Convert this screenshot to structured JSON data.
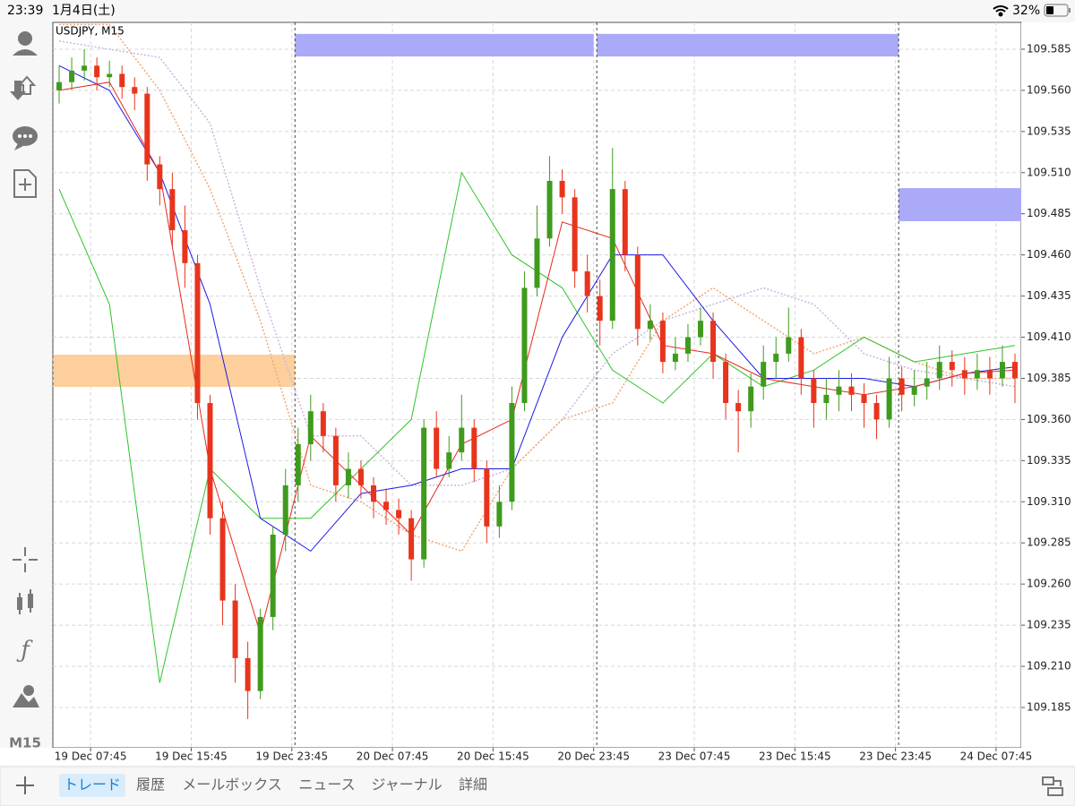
{
  "status_bar": {
    "time": "23:39",
    "date": "1月4日(土)",
    "battery": "32%"
  },
  "sidebar": {
    "timeframe": "M15"
  },
  "tabs": [
    "トレード",
    "履歴",
    "メールボックス",
    "ニュース",
    "ジャーナル",
    "詳細"
  ],
  "active_tab": 0,
  "chart_data": {
    "type": "candlestick",
    "label": "USDJPY, M15",
    "xlim": [
      0,
      308
    ],
    "ylim": [
      109.1605,
      109.6013
    ],
    "grid": true,
    "up_color": "#3f9b1d",
    "down_color": "#e8341c",
    "xticks": [
      {
        "value": 12,
        "label": "19 Dec 07:45"
      },
      {
        "value": 44,
        "label": "19 Dec 15:45"
      },
      {
        "value": 76,
        "label": "19 Dec 23:45"
      },
      {
        "value": 108,
        "label": "20 Dec 07:45"
      },
      {
        "value": 140,
        "label": "20 Dec 15:45"
      },
      {
        "value": 172,
        "label": "20 Dec 23:45"
      },
      {
        "value": 204,
        "label": "23 Dec 07:45"
      },
      {
        "value": 236,
        "label": "23 Dec 15:45"
      },
      {
        "value": 268,
        "label": "23 Dec 23:45"
      },
      {
        "value": 300,
        "label": "24 Dec 07:45"
      }
    ],
    "yticks": [
      109.585,
      {
        "value": 109.56,
        "label": "109.560"
      },
      109.535,
      {
        "value": 109.51,
        "label": "109.510"
      },
      109.485,
      {
        "value": 109.46,
        "label": "109.460"
      },
      109.435,
      {
        "value": 109.41,
        "label": "109.410"
      },
      109.385,
      {
        "value": 109.36,
        "label": "109.360"
      },
      109.335,
      {
        "value": 109.31,
        "label": "109.310"
      },
      109.285,
      {
        "value": 109.26,
        "label": "109.260"
      },
      109.235,
      {
        "value": 109.21,
        "label": "109.210"
      },
      109.185
    ],
    "x": [
      2,
      6,
      10,
      14,
      18,
      22,
      26,
      30,
      34,
      38,
      42,
      46,
      50,
      54,
      58,
      62,
      66,
      70,
      74,
      78,
      82,
      86,
      90,
      94,
      98,
      102,
      106,
      110,
      114,
      118,
      122,
      126,
      130,
      134,
      138,
      142,
      146,
      150,
      154,
      158,
      162,
      166,
      170,
      174,
      178,
      182,
      186,
      190,
      194,
      198,
      202,
      206,
      210,
      214,
      218,
      222,
      226,
      230,
      234,
      238,
      242,
      246,
      250,
      254,
      258,
      262,
      266,
      270,
      274,
      278,
      282,
      286,
      290,
      294,
      298,
      302,
      306
    ],
    "open": [
      109.56,
      109.565,
      109.572,
      109.575,
      109.568,
      109.57,
      109.562,
      109.558,
      109.515,
      109.5,
      109.475,
      109.455,
      109.37,
      109.3,
      109.25,
      109.215,
      109.195,
      109.24,
      109.29,
      109.32,
      109.345,
      109.365,
      109.35,
      109.32,
      109.33,
      109.32,
      109.31,
      109.305,
      109.3,
      109.275,
      109.355,
      109.33,
      109.34,
      109.355,
      109.33,
      109.295,
      109.31,
      109.37,
      109.44,
      109.47,
      109.505,
      109.495,
      109.45,
      109.435,
      109.42,
      109.5,
      109.46,
      109.415,
      109.42,
      109.395,
      109.4,
      109.41,
      109.42,
      109.395,
      109.37,
      109.365,
      109.38,
      109.395,
      109.4,
      109.41,
      109.385,
      109.37,
      109.375,
      109.38,
      109.375,
      109.37,
      109.36,
      109.385,
      109.375,
      109.38,
      109.385,
      109.395,
      109.39,
      109.385,
      109.39,
      109.385,
      109.395
    ],
    "high": [
      109.575,
      109.58,
      109.585,
      109.58,
      109.578,
      109.575,
      109.568,
      109.562,
      109.52,
      109.51,
      109.49,
      109.46,
      109.375,
      109.31,
      109.26,
      109.225,
      109.245,
      109.295,
      109.33,
      109.355,
      109.375,
      109.37,
      109.355,
      109.34,
      109.335,
      109.325,
      109.318,
      109.312,
      109.305,
      109.36,
      109.365,
      109.35,
      109.375,
      109.36,
      109.335,
      109.32,
      109.38,
      109.45,
      109.49,
      109.52,
      109.512,
      109.5,
      109.46,
      109.445,
      109.525,
      109.505,
      109.465,
      109.43,
      109.425,
      109.41,
      109.418,
      109.428,
      109.425,
      109.4,
      109.378,
      109.388,
      109.405,
      109.41,
      109.428,
      109.415,
      109.39,
      109.385,
      109.39,
      109.388,
      109.382,
      109.375,
      109.398,
      109.392,
      109.39,
      109.395,
      109.405,
      109.402,
      109.398,
      109.4,
      109.398,
      109.405,
      109.4
    ],
    "low": [
      109.552,
      109.56,
      109.566,
      109.56,
      109.562,
      109.555,
      109.548,
      109.505,
      109.49,
      109.465,
      109.44,
      109.36,
      109.29,
      109.235,
      109.2,
      109.178,
      109.19,
      109.232,
      109.28,
      109.31,
      109.335,
      109.34,
      109.31,
      109.312,
      109.312,
      109.3,
      109.296,
      109.29,
      109.262,
      109.27,
      109.325,
      109.325,
      109.335,
      109.322,
      109.285,
      109.288,
      109.305,
      109.365,
      109.435,
      109.465,
      109.485,
      109.44,
      109.425,
      109.405,
      109.415,
      109.45,
      109.405,
      109.408,
      109.388,
      109.39,
      109.395,
      109.405,
      109.385,
      109.36,
      109.34,
      109.355,
      109.372,
      109.385,
      109.395,
      109.375,
      109.355,
      109.36,
      109.365,
      109.365,
      109.355,
      109.348,
      109.355,
      109.365,
      109.368,
      109.372,
      109.378,
      109.38,
      109.375,
      109.378,
      109.375,
      109.38,
      109.37
    ],
    "close": [
      109.565,
      109.572,
      109.575,
      109.568,
      109.57,
      109.562,
      109.558,
      109.515,
      109.5,
      109.475,
      109.455,
      109.37,
      109.3,
      109.25,
      109.215,
      109.195,
      109.24,
      109.29,
      109.32,
      109.345,
      109.365,
      109.35,
      109.32,
      109.33,
      109.32,
      109.31,
      109.305,
      109.3,
      109.275,
      109.355,
      109.33,
      109.34,
      109.355,
      109.33,
      109.295,
      109.31,
      109.37,
      109.44,
      109.47,
      109.505,
      109.495,
      109.45,
      109.435,
      109.42,
      109.5,
      109.46,
      109.415,
      109.42,
      109.395,
      109.4,
      109.41,
      109.42,
      109.395,
      109.37,
      109.365,
      109.38,
      109.395,
      109.4,
      109.41,
      109.385,
      109.37,
      109.375,
      109.38,
      109.375,
      109.37,
      109.36,
      109.385,
      109.375,
      109.38,
      109.385,
      109.395,
      109.39,
      109.385,
      109.39,
      109.385,
      109.395,
      109.385
    ],
    "lines": [
      {
        "color": "#c9b6e0",
        "dash": true,
        "x": [
          2,
          18,
          34,
          50,
          66,
          82,
          98,
          114,
          130,
          146,
          162,
          178,
          194,
          210,
          226,
          242,
          258,
          274,
          290,
          306
        ],
        "values": [
          109.59,
          109.585,
          109.58,
          109.54,
          109.44,
          109.35,
          109.35,
          109.32,
          109.32,
          109.33,
          109.36,
          109.4,
          109.42,
          109.43,
          109.44,
          109.43,
          109.4,
          109.39,
          109.385,
          109.38
        ]
      },
      {
        "color": "#f0a875",
        "dash": true,
        "x": [
          2,
          18,
          34,
          50,
          66,
          82,
          98,
          114,
          130,
          146,
          162,
          178,
          194,
          210,
          226,
          242,
          258,
          274,
          290,
          306
        ],
        "values": [
          109.6,
          109.6,
          109.56,
          109.5,
          109.42,
          109.32,
          109.31,
          109.29,
          109.28,
          109.33,
          109.36,
          109.37,
          109.42,
          109.44,
          109.42,
          109.4,
          109.41,
          109.395,
          109.385,
          109.385
        ]
      },
      {
        "color": "#2fc42a",
        "dash": false,
        "x": [
          2,
          18,
          34,
          50,
          66,
          82,
          98,
          114,
          130,
          146,
          162,
          178,
          194,
          210,
          226,
          242,
          258,
          274,
          290,
          306
        ],
        "values": [
          109.5,
          109.43,
          109.2,
          109.33,
          109.3,
          109.3,
          109.33,
          109.36,
          109.51,
          109.46,
          109.44,
          109.39,
          109.37,
          109.4,
          109.38,
          109.39,
          109.41,
          109.395,
          109.4,
          109.405
        ]
      },
      {
        "color": "#1a1ae6",
        "dash": false,
        "x": [
          2,
          18,
          34,
          50,
          66,
          82,
          98,
          114,
          130,
          146,
          162,
          178,
          194,
          210,
          226,
          242,
          258,
          274,
          290,
          306
        ],
        "values": [
          109.575,
          109.56,
          109.51,
          109.43,
          109.3,
          109.28,
          109.315,
          109.32,
          109.33,
          109.33,
          109.41,
          109.46,
          109.46,
          109.42,
          109.385,
          109.385,
          109.385,
          109.38,
          109.388,
          109.392
        ]
      },
      {
        "color": "#e8281c",
        "dash": false,
        "x": [
          2,
          18,
          34,
          50,
          66,
          82,
          98,
          114,
          130,
          146,
          162,
          178,
          194,
          210,
          226,
          242,
          258,
          274,
          290,
          306
        ],
        "values": [
          109.56,
          109.565,
          109.51,
          109.33,
          109.23,
          109.35,
          109.32,
          109.29,
          109.345,
          109.36,
          109.48,
          109.47,
          109.405,
          109.4,
          109.385,
          109.38,
          109.375,
          109.38,
          109.388,
          109.39
        ]
      }
    ],
    "zones": [
      {
        "color": "#fccf9c",
        "x": [
          0,
          77
        ],
        "y": [
          109.3798,
          109.3994
        ]
      },
      {
        "color": "#aaaaf8",
        "x": [
          77,
          172
        ],
        "y": [
          109.5806,
          109.5943
        ]
      },
      {
        "color": "#aaaaf8",
        "x": [
          173,
          269
        ],
        "y": [
          109.5806,
          109.5943
        ]
      },
      {
        "color": "#aaaaf8",
        "x": [
          269,
          308
        ],
        "y": [
          109.4805,
          109.5006
        ]
      }
    ]
  }
}
